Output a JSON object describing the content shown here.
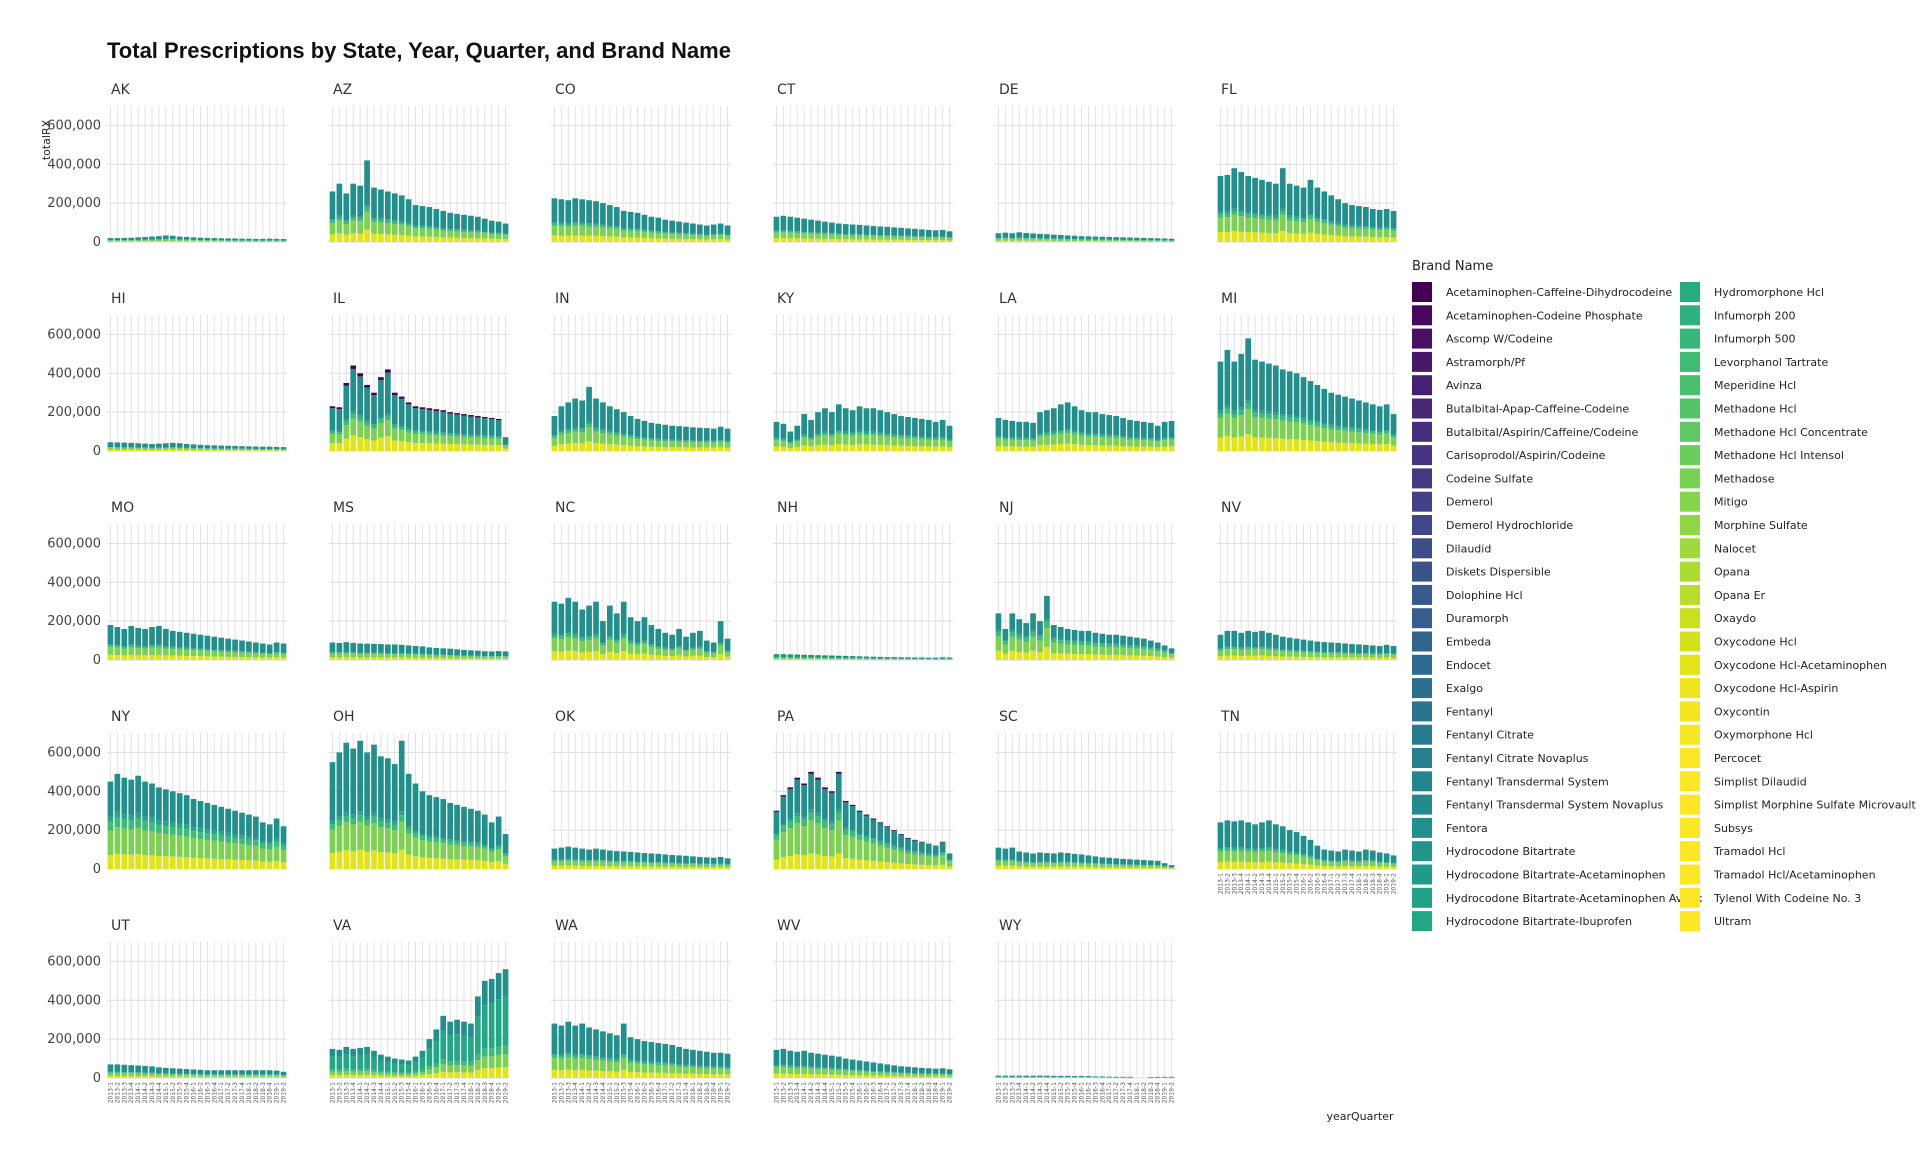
{
  "chart_data": {
    "type": "bar",
    "stacked": true,
    "faceted": true,
    "title": "Total Prescriptions by State, Year, Quarter, and Brand Name",
    "xlabel": "yearQuarter",
    "ylabel": "totalRX",
    "ylim": [
      0,
      700000
    ],
    "yticks": [
      0,
      200000,
      400000,
      600000
    ],
    "ytick_labels": [
      "0",
      "200,000",
      "400,000",
      "600,000"
    ],
    "grid": true,
    "legend_position": "right",
    "legend_title": "Brand Name",
    "x_categories": [
      "2013-1",
      "2013-2",
      "2013-3",
      "2013-4",
      "2014-1",
      "2014-2",
      "2014-3",
      "2014-4",
      "2015-1",
      "2015-2",
      "2015-3",
      "2015-4",
      "2016-1",
      "2016-2",
      "2016-3",
      "2016-4",
      "2017-1",
      "2017-2",
      "2017-3",
      "2017-4",
      "2018-1",
      "2018-2",
      "2018-3",
      "2018-4",
      "2019-1",
      "2019-2"
    ],
    "brands": [
      "Acetaminophen-Caffeine-Dihydrocodeine",
      "Acetaminophen-Codeine Phosphate",
      "Ascomp W/Codeine",
      "Astramorph/Pf",
      "Avinza",
      "Butalbital-Apap-Caffeine-Codeine",
      "Butalbital/Aspirin/Caffeine/Codeine",
      "Carisoprodol/Aspirin/Codeine",
      "Codeine Sulfate",
      "Demerol",
      "Demerol Hydrochloride",
      "Dilaudid",
      "Diskets Dispersible",
      "Dolophine Hcl",
      "Duramorph",
      "Embeda",
      "Endocet",
      "Exalgo",
      "Fentanyl",
      "Fentanyl Citrate",
      "Fentanyl Citrate Novaplus",
      "Fentanyl Transdermal System",
      "Fentanyl Transdermal System Novaplus",
      "Fentora",
      "Hydrocodone Bitartrate",
      "Hydrocodone Bitartrate-Acetaminophen",
      "Hydrocodone Bitartrate-Acetaminophen Avpak",
      "Hydrocodone Bitartrate-Ibuprofen",
      "Hydromorphone Hcl",
      "Infumorph 200",
      "Infumorph 500",
      "Levorphanol Tartrate",
      "Meperidine Hcl",
      "Methadone Hcl",
      "Methadone Hcl Concentrate",
      "Methadone Hcl Intensol",
      "Methadose",
      "Mitigo",
      "Morphine Sulfate",
      "Nalocet",
      "Opana",
      "Opana Er",
      "Oxaydo",
      "Oxycodone Hcl",
      "Oxycodone Hcl-Acetaminophen",
      "Oxycodone Hcl-Aspirin",
      "Oxycontin",
      "Oxymorphone Hcl",
      "Percocet",
      "Simplist Dilaudid",
      "Simplist Morphine Sulfate Microvault",
      "Subsys",
      "Tramadol Hcl",
      "Tramadol Hcl/Acetaminophen",
      "Tylenol With Codeine No. 3",
      "Ultram"
    ],
    "stack_groups": [
      {
        "name": "Tramadol Hcl",
        "color": "#e1e418"
      },
      {
        "name": "Oxycodone Hcl",
        "color": "#7cd250"
      },
      {
        "name": "Morphine Sulfate",
        "color": "#3cbc74"
      },
      {
        "name": "Methadone Hcl",
        "color": "#22a884"
      },
      {
        "name": "Hydrocodone Bitartrate-Acetaminophen",
        "color": "#21908c"
      },
      {
        "name": "Acetaminophen-Codeine Phosphate",
        "color": "#440154"
      }
    ],
    "panels": [
      {
        "state": "AK",
        "totals": [
          20000,
          20000,
          21000,
          22000,
          24000,
          26000,
          28000,
          30000,
          34000,
          32000,
          28000,
          26000,
          24000,
          22000,
          21000,
          20000,
          19000,
          18000,
          18000,
          17000,
          17000,
          16000,
          16000,
          17000,
          16000,
          15000
        ],
        "shares": "normal"
      },
      {
        "state": "AZ",
        "totals": [
          260000,
          300000,
          250000,
          300000,
          290000,
          420000,
          280000,
          270000,
          260000,
          250000,
          240000,
          220000,
          190000,
          185000,
          180000,
          170000,
          160000,
          150000,
          145000,
          140000,
          135000,
          130000,
          120000,
          110000,
          105000,
          95000
        ],
        "shares": "normal"
      },
      {
        "state": "CO",
        "totals": [
          225000,
          220000,
          215000,
          225000,
          220000,
          215000,
          210000,
          200000,
          190000,
          180000,
          160000,
          155000,
          150000,
          140000,
          130000,
          125000,
          115000,
          110000,
          105000,
          100000,
          95000,
          90000,
          85000,
          90000,
          95000,
          85000
        ],
        "shares": "normal"
      },
      {
        "state": "CT",
        "totals": [
          130000,
          135000,
          130000,
          125000,
          120000,
          115000,
          110000,
          105000,
          100000,
          95000,
          92000,
          90000,
          88000,
          85000,
          82000,
          80000,
          78000,
          75000,
          73000,
          70000,
          68000,
          65000,
          62000,
          60000,
          62000,
          55000
        ],
        "shares": "normal"
      },
      {
        "state": "DE",
        "totals": [
          45000,
          48000,
          45000,
          50000,
          46000,
          44000,
          42000,
          40000,
          38000,
          36000,
          34000,
          32000,
          30000,
          29000,
          28000,
          27000,
          26000,
          25000,
          24000,
          23000,
          22000,
          21000,
          20000,
          19000,
          18000,
          17000
        ],
        "shares": "normal"
      },
      {
        "state": "FL",
        "totals": [
          340000,
          345000,
          380000,
          360000,
          340000,
          330000,
          320000,
          310000,
          300000,
          380000,
          300000,
          290000,
          280000,
          320000,
          280000,
          260000,
          240000,
          220000,
          200000,
          190000,
          185000,
          180000,
          170000,
          165000,
          170000,
          160000
        ],
        "shares": "normal"
      },
      {
        "state": "HI",
        "totals": [
          45000,
          44000,
          43000,
          42000,
          40000,
          38000,
          36000,
          38000,
          40000,
          42000,
          40000,
          36000,
          34000,
          32000,
          30000,
          29000,
          28000,
          27000,
          26000,
          25000,
          24000,
          23000,
          22000,
          22000,
          21000,
          20000
        ],
        "shares": "normal"
      },
      {
        "state": "IL",
        "totals": [
          230000,
          225000,
          350000,
          440000,
          400000,
          340000,
          300000,
          380000,
          420000,
          300000,
          280000,
          250000,
          230000,
          225000,
          220000,
          215000,
          210000,
          200000,
          195000,
          190000,
          185000,
          180000,
          175000,
          170000,
          165000,
          70000
        ],
        "shares": "topdark"
      },
      {
        "state": "IN",
        "totals": [
          180000,
          230000,
          250000,
          270000,
          260000,
          330000,
          270000,
          250000,
          230000,
          215000,
          200000,
          180000,
          165000,
          155000,
          145000,
          140000,
          135000,
          130000,
          128000,
          125000,
          122000,
          120000,
          118000,
          115000,
          125000,
          115000
        ],
        "shares": "normal"
      },
      {
        "state": "KY",
        "totals": [
          150000,
          140000,
          100000,
          130000,
          190000,
          160000,
          200000,
          220000,
          200000,
          240000,
          220000,
          210000,
          230000,
          220000,
          220000,
          210000,
          200000,
          190000,
          180000,
          175000,
          170000,
          165000,
          160000,
          150000,
          160000,
          130000
        ],
        "shares": "normal"
      },
      {
        "state": "LA",
        "totals": [
          170000,
          160000,
          155000,
          150000,
          150000,
          145000,
          200000,
          210000,
          220000,
          240000,
          250000,
          230000,
          210000,
          200000,
          200000,
          190000,
          185000,
          180000,
          170000,
          160000,
          155000,
          150000,
          145000,
          130000,
          150000,
          155000
        ],
        "shares": "normal"
      },
      {
        "state": "MI",
        "totals": [
          460000,
          520000,
          460000,
          500000,
          580000,
          470000,
          460000,
          450000,
          440000,
          420000,
          410000,
          400000,
          380000,
          360000,
          340000,
          320000,
          300000,
          290000,
          280000,
          270000,
          260000,
          250000,
          240000,
          230000,
          240000,
          190000
        ],
        "shares": "normal"
      },
      {
        "state": "MO",
        "totals": [
          180000,
          170000,
          160000,
          175000,
          165000,
          160000,
          170000,
          175000,
          160000,
          150000,
          145000,
          140000,
          135000,
          130000,
          125000,
          120000,
          115000,
          110000,
          105000,
          100000,
          95000,
          90000,
          85000,
          80000,
          90000,
          85000
        ],
        "shares": "normal"
      },
      {
        "state": "MS",
        "totals": [
          90000,
          88000,
          92000,
          88000,
          85000,
          84000,
          83000,
          82000,
          80000,
          80000,
          78000,
          75000,
          72000,
          70000,
          65000,
          62000,
          60000,
          58000,
          55000,
          52000,
          50000,
          48000,
          45000,
          44000,
          46000,
          44000
        ],
        "shares": "normal"
      },
      {
        "state": "NC",
        "totals": [
          300000,
          290000,
          320000,
          300000,
          260000,
          280000,
          300000,
          200000,
          280000,
          240000,
          300000,
          220000,
          200000,
          220000,
          180000,
          160000,
          140000,
          130000,
          160000,
          120000,
          140000,
          150000,
          100000,
          90000,
          200000,
          110000
        ],
        "shares": "normal"
      },
      {
        "state": "NH",
        "totals": [
          30000,
          30000,
          29000,
          28000,
          27000,
          26000,
          25000,
          24000,
          23000,
          22000,
          21000,
          20000,
          19000,
          18000,
          17000,
          16000,
          15000,
          15000,
          14000,
          14000,
          13000,
          13000,
          12000,
          12000,
          14000,
          13000
        ],
        "shares": "normal"
      },
      {
        "state": "NJ",
        "totals": [
          240000,
          160000,
          240000,
          210000,
          190000,
          240000,
          200000,
          330000,
          180000,
          170000,
          160000,
          155000,
          150000,
          150000,
          140000,
          135000,
          130000,
          130000,
          125000,
          120000,
          115000,
          110000,
          100000,
          90000,
          75000,
          60000
        ],
        "shares": "nj"
      },
      {
        "state": "NV",
        "totals": [
          130000,
          150000,
          150000,
          140000,
          150000,
          145000,
          150000,
          140000,
          130000,
          120000,
          115000,
          110000,
          105000,
          100000,
          95000,
          92000,
          90000,
          88000,
          85000,
          82000,
          80000,
          78000,
          75000,
          72000,
          78000,
          72000
        ],
        "shares": "normal"
      },
      {
        "state": "NY",
        "totals": [
          450000,
          490000,
          470000,
          460000,
          480000,
          450000,
          440000,
          420000,
          410000,
          400000,
          390000,
          380000,
          360000,
          350000,
          340000,
          330000,
          320000,
          310000,
          300000,
          290000,
          280000,
          270000,
          240000,
          230000,
          260000,
          220000
        ],
        "shares": "ny"
      },
      {
        "state": "OH",
        "totals": [
          550000,
          600000,
          650000,
          620000,
          660000,
          600000,
          640000,
          580000,
          570000,
          540000,
          660000,
          490000,
          440000,
          400000,
          380000,
          370000,
          360000,
          340000,
          330000,
          320000,
          310000,
          300000,
          280000,
          240000,
          270000,
          180000
        ],
        "shares": "normal"
      },
      {
        "state": "OK",
        "totals": [
          105000,
          110000,
          115000,
          110000,
          105000,
          100000,
          105000,
          100000,
          95000,
          92000,
          90000,
          88000,
          85000,
          82000,
          80000,
          78000,
          75000,
          72000,
          70000,
          68000,
          65000,
          62000,
          60000,
          58000,
          62000,
          55000
        ],
        "shares": "normal"
      },
      {
        "state": "PA",
        "totals": [
          300000,
          380000,
          420000,
          470000,
          440000,
          500000,
          470000,
          420000,
          400000,
          500000,
          350000,
          330000,
          300000,
          280000,
          260000,
          240000,
          220000,
          200000,
          180000,
          160000,
          150000,
          140000,
          130000,
          120000,
          140000,
          80000
        ],
        "shares": "pa"
      },
      {
        "state": "SC",
        "totals": [
          110000,
          105000,
          110000,
          90000,
          85000,
          80000,
          85000,
          82000,
          80000,
          85000,
          82000,
          78000,
          75000,
          70000,
          65000,
          60000,
          58000,
          55000,
          52000,
          50000,
          48000,
          46000,
          44000,
          42000,
          30000,
          20000
        ],
        "shares": "normal"
      },
      {
        "state": "TN",
        "totals": [
          240000,
          250000,
          245000,
          250000,
          240000,
          230000,
          240000,
          250000,
          230000,
          220000,
          200000,
          190000,
          170000,
          150000,
          120000,
          100000,
          95000,
          90000,
          100000,
          95000,
          90000,
          100000,
          95000,
          85000,
          80000,
          70000
        ],
        "shares": "normal"
      },
      {
        "state": "UT",
        "totals": [
          70000,
          70000,
          68000,
          66000,
          64000,
          62000,
          60000,
          55000,
          52000,
          50000,
          48000,
          46000,
          44000,
          42000,
          40000,
          40000,
          40000,
          40000,
          40000,
          40000,
          40000,
          40000,
          40000,
          40000,
          38000,
          32000
        ],
        "shares": "normal"
      },
      {
        "state": "VA",
        "totals": [
          150000,
          145000,
          160000,
          150000,
          155000,
          160000,
          140000,
          120000,
          110000,
          100000,
          95000,
          90000,
          110000,
          140000,
          200000,
          250000,
          320000,
          290000,
          300000,
          290000,
          280000,
          420000,
          500000,
          510000,
          540000,
          560000
        ],
        "shares": "va"
      },
      {
        "state": "WA",
        "totals": [
          280000,
          270000,
          290000,
          270000,
          280000,
          260000,
          250000,
          240000,
          230000,
          220000,
          280000,
          210000,
          200000,
          190000,
          185000,
          180000,
          175000,
          170000,
          160000,
          150000,
          145000,
          140000,
          135000,
          130000,
          130000,
          125000
        ],
        "shares": "normal"
      },
      {
        "state": "WV",
        "totals": [
          145000,
          150000,
          140000,
          135000,
          140000,
          130000,
          125000,
          120000,
          115000,
          110000,
          100000,
          95000,
          90000,
          85000,
          80000,
          75000,
          70000,
          65000,
          60000,
          58000,
          55000,
          52000,
          50000,
          48000,
          50000,
          45000
        ],
        "shares": "normal"
      },
      {
        "state": "WY",
        "totals": [
          12000,
          12000,
          12000,
          12000,
          12000,
          12000,
          12000,
          12000,
          11000,
          11000,
          11000,
          10000,
          10000,
          10000,
          8000,
          8000,
          7000,
          6000,
          6000,
          6000,
          0,
          0,
          5000,
          6000,
          6000,
          6000
        ],
        "shares": "normal"
      }
    ]
  },
  "viridis": [
    "#440154",
    "#46085c",
    "#471063",
    "#48186a",
    "#482071",
    "#482777",
    "#472e7c",
    "#463480",
    "#443a83",
    "#424086",
    "#3f4788",
    "#3d4d8a",
    "#3a538b",
    "#37598c",
    "#345e8d",
    "#31648d",
    "#2e6a8e",
    "#2c6f8e",
    "#2a748e",
    "#287a8e",
    "#267f8e",
    "#24858e",
    "#228a8d",
    "#21908c",
    "#20968b",
    "#1f9c89",
    "#20a186",
    "#22a784",
    "#27ac81",
    "#2db27d",
    "#35b779",
    "#3ebc73",
    "#48c16e",
    "#53c568",
    "#5ec962",
    "#6ace5b",
    "#77d153",
    "#84d54b",
    "#91d742",
    "#9fda3a",
    "#acdc30",
    "#badd27",
    "#c8e020",
    "#d5e21a",
    "#e2e418",
    "#efe51c",
    "#f5e51f",
    "#f8e621",
    "#fbe723",
    "#fde725",
    "#fde725",
    "#fde725",
    "#fde725",
    "#fde725",
    "#fde725",
    "#fde725"
  ]
}
